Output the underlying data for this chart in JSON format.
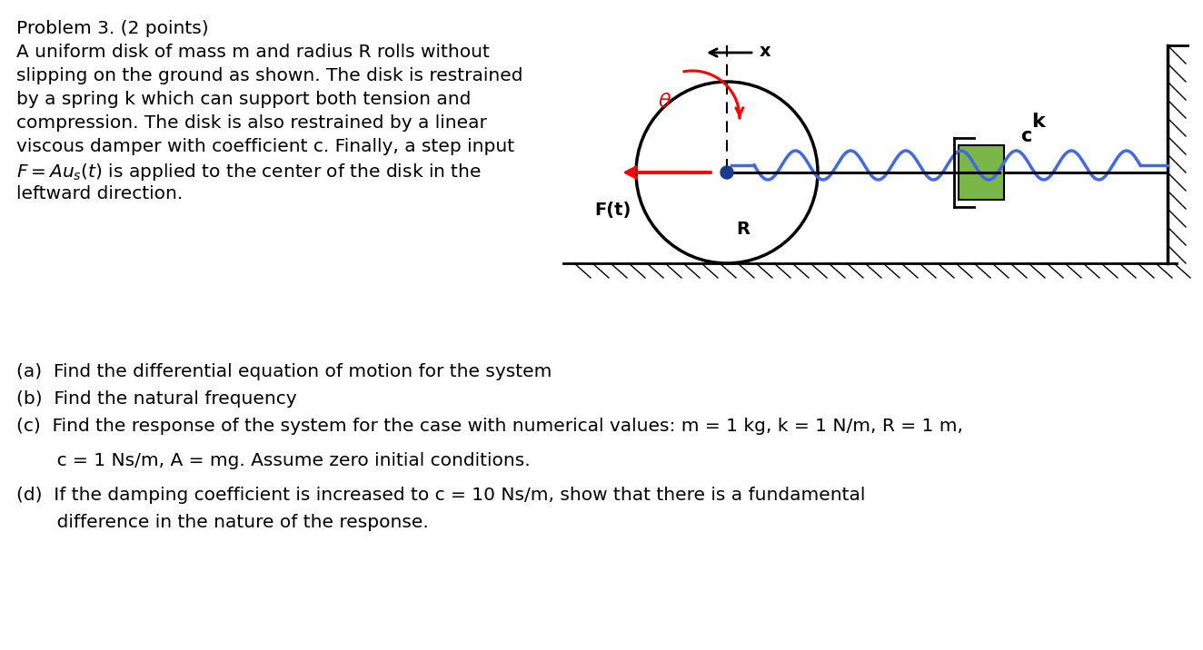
{
  "title_text": "Problem 3. (2 points)",
  "prob_line1": "A uniform disk of mass m and radius R rolls without",
  "prob_line2": "slipping on the ground as shown. The disk is restrained",
  "prob_line3": "by a spring k which can support both tension and",
  "prob_line4": "compression. The disk is also restrained by a linear",
  "prob_line5": "viscous damper with coefficient c. Finally, a step input",
  "prob_line6": "leftward direction.",
  "q_a": "(a)  Find the differential equation of motion for the system",
  "q_b": "(b)  Find the natural frequency",
  "q_c": "(c)  Find the response of the system for the case with numerical values: m = 1 kg, k = 1 N/m, R = 1 m,",
  "q_c2": "       c = 1 Ns/m, A = mg. Assume zero initial conditions.",
  "q_d": "(d)  If the damping coefficient is increased to c = 10 Ns/m, show that there is a fundamental",
  "q_d2": "       difference in the nature of the response.",
  "bg_color": "#ffffff",
  "text_color": "#000000",
  "spring_color": "#4169E1",
  "damper_color": "#7ab648",
  "force_color": "#ff0000",
  "theta_color": "#ff0000"
}
